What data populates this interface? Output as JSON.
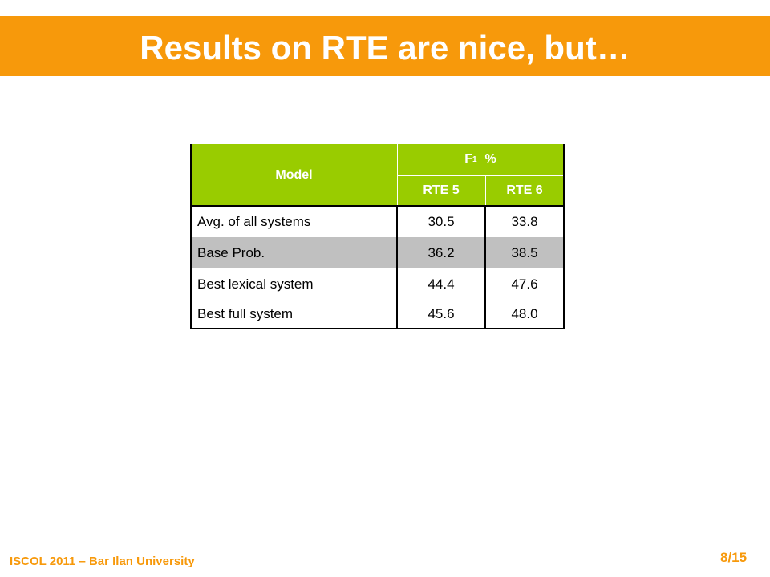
{
  "header": {
    "title": "Results on RTE are nice, but…"
  },
  "table": {
    "model_label": "Model",
    "metric": {
      "base": "F",
      "sub": "1",
      "unit": "%"
    },
    "columns": [
      "RTE 5",
      "RTE 6"
    ],
    "rows": [
      [
        "Avg. of all systems",
        "30.5",
        "33.8"
      ],
      [
        "Base Prob.",
        "36.2",
        "38.5"
      ],
      [
        "Best lexical system",
        "44.4",
        "47.6"
      ],
      [
        "Best full system",
        "45.6",
        "48.0"
      ]
    ]
  },
  "footer": {
    "venue": "ISCOL 2011 – Bar Ilan University",
    "page": "8/15"
  }
}
